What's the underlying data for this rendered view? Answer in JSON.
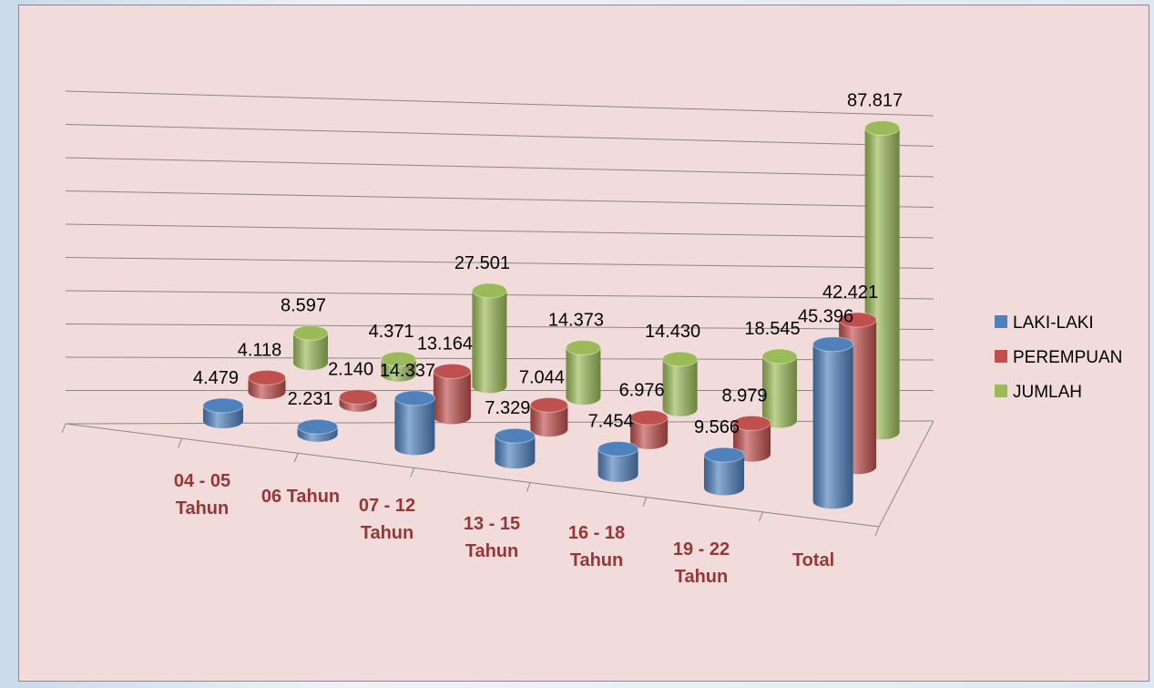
{
  "chart_data": {
    "type": "bar3d",
    "categories": [
      "04 - 05 Tahun",
      "06 Tahun",
      "07 - 12 Tahun",
      "13 - 15 Tahun",
      "16 - 18 Tahun",
      "19 - 22 Tahun",
      "Total"
    ],
    "series": [
      {
        "name": "LAKI-LAKI",
        "color": "#4f81bd",
        "values": [
          4479,
          2231,
          14337,
          7329,
          7454,
          9566,
          45396
        ],
        "value_labels": [
          "4.479",
          "2.231",
          "14.337",
          "7.329",
          "7.454",
          "9.566",
          "45.396"
        ]
      },
      {
        "name": "PEREMPUAN",
        "color": "#c0504d",
        "values": [
          4118,
          2140,
          13164,
          7044,
          6976,
          8979,
          42421
        ],
        "value_labels": [
          "4.118",
          "2.140",
          "13.164",
          "7.044",
          "6.976",
          "8.979",
          "42.421"
        ]
      },
      {
        "name": "JUMLAH",
        "color": "#9bbb59",
        "values": [
          8597,
          4371,
          27501,
          14373,
          14430,
          18545,
          87817
        ],
        "value_labels": [
          "8.597",
          "4.371",
          "27.501",
          "14.373",
          "14.430",
          "18.545",
          "87.817"
        ]
      }
    ],
    "ylim": [
      0,
      100000
    ],
    "yticks": [
      0,
      10000,
      20000,
      30000,
      40000,
      50000,
      60000,
      70000,
      80000,
      90000,
      100000
    ],
    "grid": true,
    "legend": "right"
  }
}
